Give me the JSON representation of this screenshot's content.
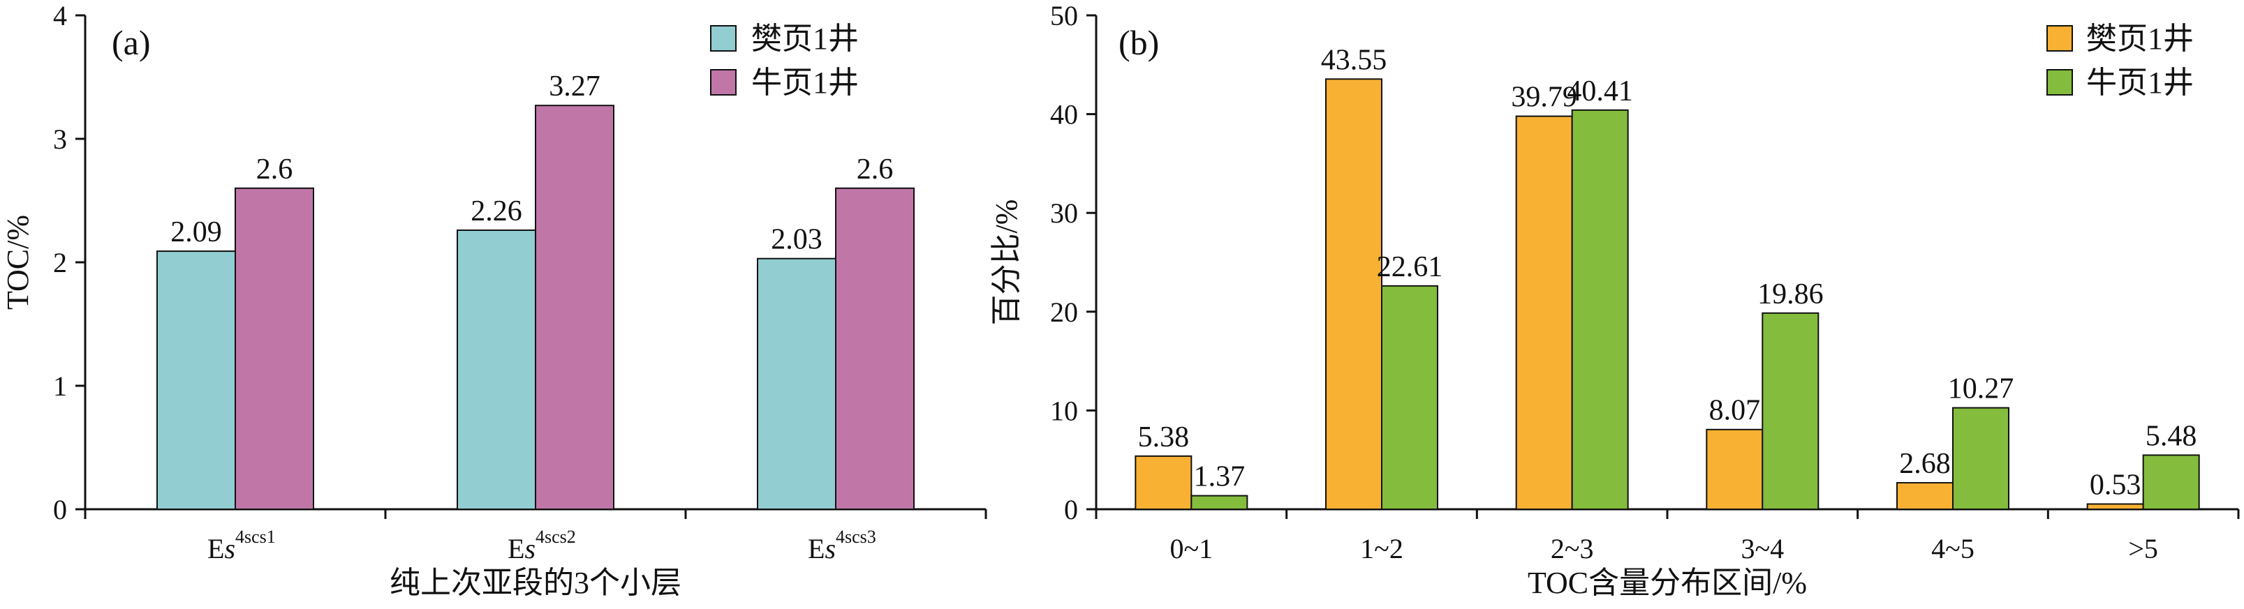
{
  "chart_data": [
    {
      "type": "bar",
      "panel_label": "(a)",
      "categories": [
        {
          "base": "E",
          "italic": "s",
          "sup": "4scs1"
        },
        {
          "base": "E",
          "italic": "s",
          "sup": "4scs2"
        },
        {
          "base": "E",
          "italic": "s",
          "sup": "4scs3"
        }
      ],
      "series": [
        {
          "name": "樊页1井",
          "color": "#92CDD1",
          "values": [
            2.09,
            2.26,
            2.03
          ],
          "labels": [
            "2.09",
            "2.26",
            "2.03"
          ]
        },
        {
          "name": "牛页1井",
          "color": "#C077A8",
          "values": [
            2.6,
            3.27,
            2.6
          ],
          "labels": [
            "2.6",
            "3.27",
            "2.6"
          ]
        }
      ],
      "xlabel": "纯上次亚段的3个小层",
      "ylabel": "TOC/%",
      "ylim": [
        0,
        4
      ],
      "yticks": [
        "0",
        "1",
        "2",
        "3",
        "4"
      ],
      "grid": false,
      "legend_position": "top-right"
    },
    {
      "type": "bar",
      "panel_label": "(b)",
      "categories": [
        "0~1",
        "1~2",
        "2~3",
        "3~4",
        "4~5",
        ">5"
      ],
      "series": [
        {
          "name": "樊页1井",
          "color": "#F8B133",
          "values": [
            5.38,
            43.55,
            39.79,
            8.07,
            2.68,
            0.53
          ],
          "labels": [
            "5.38",
            "43.55",
            "39.79",
            "8.07",
            "2.68",
            "0.53"
          ]
        },
        {
          "name": "牛页1井",
          "color": "#84BC3E",
          "values": [
            1.37,
            22.61,
            40.41,
            19.86,
            10.27,
            5.48
          ],
          "labels": [
            "1.37",
            "22.61",
            "40.41",
            "19.86",
            "10.27",
            "5.48"
          ]
        }
      ],
      "xlabel": "TOC含量分布区间/%",
      "ylabel": "百分比/%",
      "ylim": [
        0,
        50
      ],
      "yticks": [
        "0",
        "10",
        "20",
        "30",
        "40",
        "50"
      ],
      "grid": false,
      "legend_position": "top-right"
    }
  ]
}
